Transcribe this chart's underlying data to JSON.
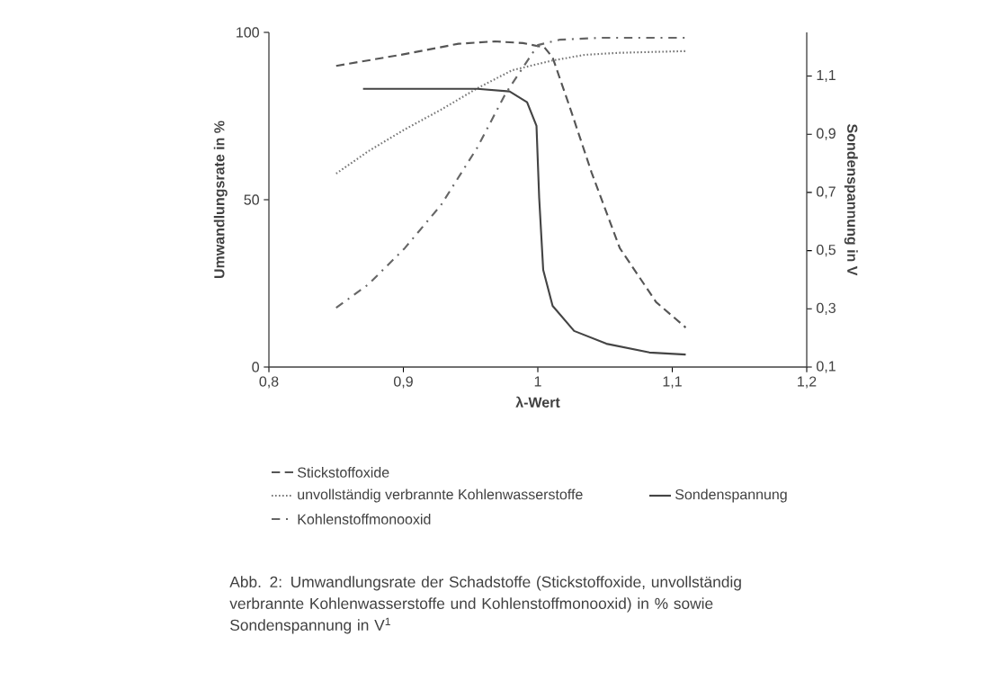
{
  "chart_data": {
    "type": "line",
    "xlabel": "λ-Wert",
    "ylabel": "Umwandlungsrate in %",
    "y2label": "Sondenspannung in V",
    "xlim": [
      0.8,
      1.2
    ],
    "xticks": [
      {
        "value": 0.8,
        "label": "0,8"
      },
      {
        "value": 0.9,
        "label": "0,9"
      },
      {
        "value": 1.0,
        "label": "1"
      },
      {
        "value": 1.1,
        "label": "1,1"
      },
      {
        "value": 1.2,
        "label": "1,2"
      }
    ],
    "ylim": [
      0,
      100
    ],
    "yticks": [
      0,
      50,
      100
    ],
    "y2lim": [
      0.1,
      1.25
    ],
    "y2ticks": [
      {
        "value": 0.1,
        "label": "0,1"
      },
      {
        "value": 0.3,
        "label": "0,3"
      },
      {
        "value": 0.5,
        "label": "0,5"
      },
      {
        "value": 0.7,
        "label": "0,7"
      },
      {
        "value": 0.9,
        "label": "0,9"
      },
      {
        "value": 1.1,
        "label": "1,1"
      }
    ],
    "legend": "bottom",
    "grid": false,
    "series": [
      {
        "name": "Stickstoffoxide",
        "color": "#555555",
        "line_style": "dashed",
        "x": [
          0.85,
          0.901,
          0.941,
          0.968,
          0.989,
          1.005,
          1.011,
          1.024,
          1.04,
          1.061,
          1.088,
          1.11
        ],
        "values": [
          90.0,
          93.5,
          96.6,
          97.3,
          96.8,
          95.5,
          92.5,
          77.4,
          58.1,
          35.5,
          19.4,
          11.8
        ]
      },
      {
        "name": "unvollständig verbrannte Kohlenwasserstoffe",
        "color": "#777777",
        "line_style": "dotted",
        "x": [
          0.85,
          0.874,
          0.901,
          0.928,
          0.955,
          0.981,
          1.011,
          1.035,
          1.061,
          1.11
        ],
        "values": [
          57.8,
          64.5,
          71.0,
          76.9,
          83.3,
          88.7,
          91.6,
          93.3,
          93.9,
          94.4
        ]
      },
      {
        "name": "Kohlenstoffmonooxid",
        "color": "#666666",
        "line_style": "dashdot",
        "x": [
          0.85,
          0.874,
          0.901,
          0.928,
          0.955,
          0.976,
          1.0,
          1.016,
          1.048,
          1.11
        ],
        "values": [
          17.7,
          24.7,
          35.5,
          48.4,
          65.6,
          81.7,
          96.2,
          97.8,
          98.4,
          98.4
        ]
      },
      {
        "name": "Sondenspannung",
        "color": "#444444",
        "line_style": "solid",
        "axis": "y2",
        "x": [
          0.87,
          0.955,
          0.979,
          0.992,
          0.999,
          1.001,
          1.004,
          1.011,
          1.027,
          1.051,
          1.083,
          1.11
        ],
        "values": [
          1.056,
          1.056,
          1.047,
          1.01,
          0.929,
          0.682,
          0.434,
          0.31,
          0.224,
          0.18,
          0.15,
          0.143
        ]
      }
    ],
    "annotations": [
      "Abb. 2: Umwandlungsrate der Schadstoffe (Stickstoffoxide, unvollständig verbrannte Kohlenwasserstoffe und Kohlenstoffmonooxid) in % sowie Sondenspannung in V$^{1}$"
    ]
  }
}
